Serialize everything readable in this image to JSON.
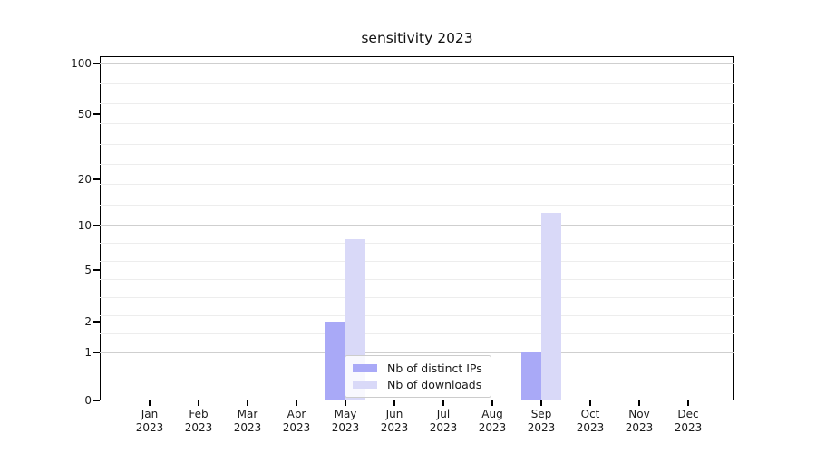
{
  "chart_data": {
    "type": "bar",
    "title": "sensitivity 2023",
    "categories": [
      "Jan 2023",
      "Feb 2023",
      "Mar 2023",
      "Apr 2023",
      "May 2023",
      "Jun 2023",
      "Jul 2023",
      "Aug 2023",
      "Sep 2023",
      "Oct 2023",
      "Nov 2023",
      "Dec 2023"
    ],
    "series": [
      {
        "name": "Nb of distinct IPs",
        "color": "#a9a9f7",
        "values": [
          0,
          0,
          0,
          0,
          2,
          0,
          0,
          0,
          1,
          0,
          0,
          0
        ]
      },
      {
        "name": "Nb of downloads",
        "color": "#d9d9f8",
        "values": [
          0,
          0,
          0,
          0,
          8,
          0,
          0,
          0,
          12,
          0,
          0,
          0
        ]
      }
    ],
    "yticks": [
      0,
      1,
      2,
      5,
      10,
      20,
      50,
      100
    ],
    "ylim": [
      0,
      110
    ],
    "xlabel": "",
    "ylabel": "",
    "scale": "symlog-like (linear 0-1, compressed log above)",
    "grid": "horizontal major+minor",
    "legend_position": "lower center (inside axes)"
  }
}
